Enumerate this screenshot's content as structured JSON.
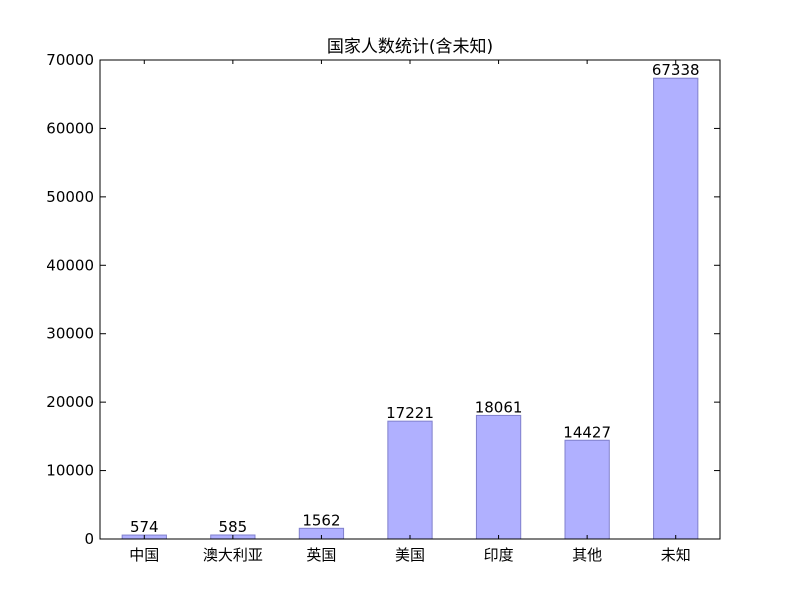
{
  "chart_data": {
    "type": "bar",
    "title": "国家人数统计(含未知)",
    "xlabel": "",
    "ylabel": "",
    "categories": [
      "中国",
      "澳大利亚",
      "英国",
      "美国",
      "印度",
      "其他",
      "未知"
    ],
    "values": [
      574,
      585,
      1562,
      17221,
      18061,
      14427,
      67338
    ],
    "data_labels": [
      "574",
      "585",
      "1562",
      "17221",
      "18061",
      "14427",
      "67338"
    ],
    "ylim": [
      0,
      70000
    ],
    "yticks": [
      0,
      10000,
      20000,
      30000,
      40000,
      50000,
      60000,
      70000
    ],
    "ytick_labels": [
      "0",
      "10000",
      "20000",
      "30000",
      "40000",
      "50000",
      "60000",
      "70000"
    ],
    "grid": false,
    "legend": "none",
    "colors": {
      "bar_fill": "#b0b0ff",
      "bar_edge": "#8080cc",
      "axis": "#000000",
      "text": "#000000"
    }
  }
}
